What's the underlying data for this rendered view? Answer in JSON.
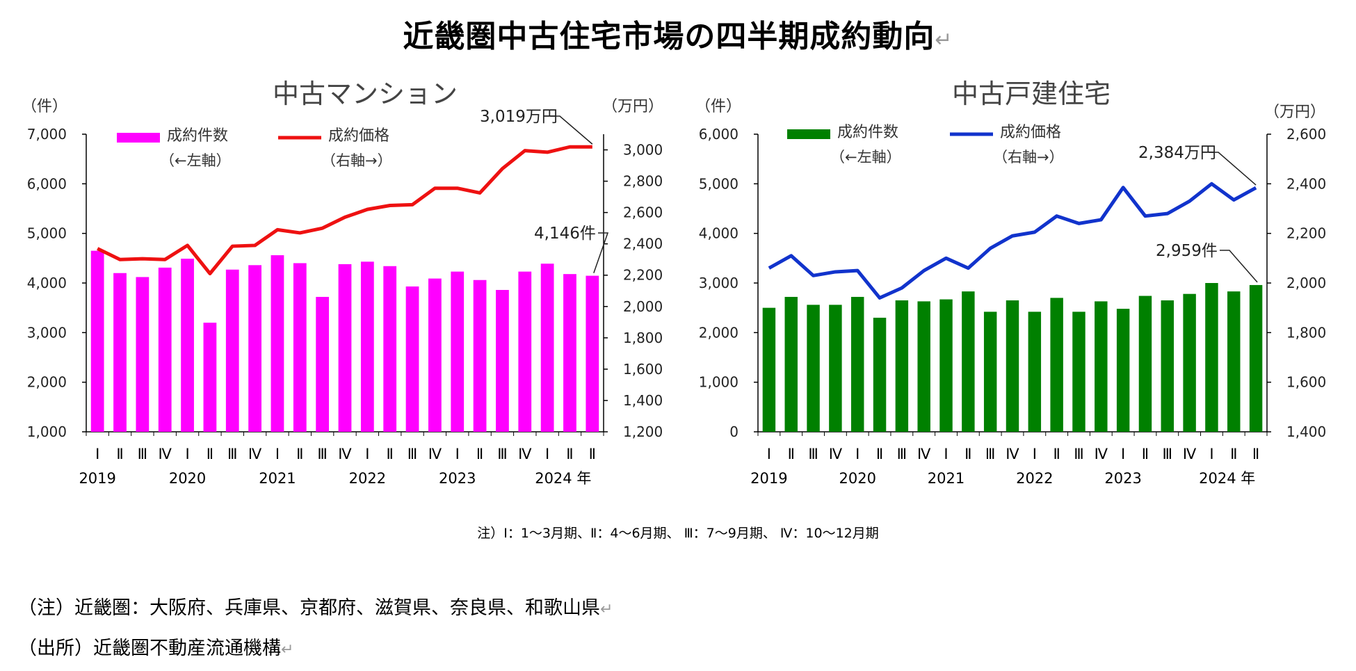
{
  "title": "近畿圏中古住宅市場の四半期成約動向",
  "return_mark": "↵",
  "quarter_note": "注）Ⅰ：1～3月期、Ⅱ：4～6月期、 Ⅲ：7～9月期、 Ⅳ：10～12月期",
  "footnotes": {
    "region": "（注）近畿圏：大阪府、兵庫県、京都府、滋賀県、奈良県、和歌山県",
    "source": "（出所）近畿圏不動産流通機構"
  },
  "colors": {
    "mansion_bar": "#ff00ff",
    "mansion_line": "#ee1111",
    "house_bar": "#008000",
    "house_line": "#1133cc"
  },
  "chart_data": [
    {
      "type": "bar+line",
      "title": "中古マンション",
      "left_unit": "（件）",
      "right_unit": "（万円）",
      "legend": {
        "bar_label": "成約件数",
        "bar_sub": "（←左軸）",
        "line_label": "成約価格",
        "line_sub": "（右軸→）"
      },
      "categories": [
        "Ⅰ",
        "Ⅱ",
        "Ⅲ",
        "Ⅳ",
        "Ⅰ",
        "Ⅱ",
        "Ⅲ",
        "Ⅳ",
        "Ⅰ",
        "Ⅱ",
        "Ⅲ",
        "Ⅳ",
        "Ⅰ",
        "Ⅱ",
        "Ⅲ",
        "Ⅳ",
        "Ⅰ",
        "Ⅱ",
        "Ⅲ",
        "Ⅳ",
        "Ⅰ",
        "Ⅱ",
        "Ⅱ"
      ],
      "years": [
        {
          "label": "2019",
          "index": 0
        },
        {
          "label": "2020",
          "index": 4
        },
        {
          "label": "2021",
          "index": 8
        },
        {
          "label": "2022",
          "index": 12
        },
        {
          "label": "2023",
          "index": 16
        },
        {
          "label": "2024 年",
          "index": 20
        }
      ],
      "bar_values": [
        4650,
        4200,
        4120,
        4310,
        4490,
        3200,
        4270,
        4360,
        4560,
        4400,
        3720,
        4380,
        4430,
        4340,
        3930,
        4090,
        4230,
        4060,
        3860,
        4230,
        4390,
        4180,
        4146
      ],
      "line_values": [
        2370,
        2300,
        2305,
        2300,
        2390,
        2210,
        2385,
        2390,
        2490,
        2470,
        2500,
        2570,
        2620,
        2645,
        2650,
        2755,
        2755,
        2725,
        2880,
        2995,
        2985,
        3019,
        3019
      ],
      "left_ylim": [
        1000,
        7000
      ],
      "left_ticks": [
        "1,000",
        "2,000",
        "3,000",
        "4,000",
        "5,000",
        "6,000",
        "7,000"
      ],
      "right_ylim": [
        1200,
        3100
      ],
      "right_ticks": [
        "1,200",
        "1,400",
        "1,600",
        "1,800",
        "2,000",
        "2,200",
        "2,400",
        "2,600",
        "2,800",
        "3,000"
      ],
      "bar_callout": "4,146件",
      "line_callout": "3,019万円"
    },
    {
      "type": "bar+line",
      "title": "中古戸建住宅",
      "left_unit": "（件）",
      "right_unit": "（万円）",
      "legend": {
        "bar_label": "成約件数",
        "bar_sub": "（←左軸）",
        "line_label": "成約価格",
        "line_sub": "（右軸→）"
      },
      "categories": [
        "Ⅰ",
        "Ⅱ",
        "Ⅲ",
        "Ⅳ",
        "Ⅰ",
        "Ⅱ",
        "Ⅲ",
        "Ⅳ",
        "Ⅰ",
        "Ⅱ",
        "Ⅲ",
        "Ⅳ",
        "Ⅰ",
        "Ⅱ",
        "Ⅲ",
        "Ⅳ",
        "Ⅰ",
        "Ⅱ",
        "Ⅲ",
        "Ⅳ",
        "Ⅰ",
        "Ⅱ",
        "Ⅱ"
      ],
      "years": [
        {
          "label": "2019",
          "index": 0
        },
        {
          "label": "2020",
          "index": 4
        },
        {
          "label": "2021",
          "index": 8
        },
        {
          "label": "2022",
          "index": 12
        },
        {
          "label": "2023",
          "index": 16
        },
        {
          "label": "2024 年",
          "index": 20
        }
      ],
      "bar_values": [
        2500,
        2720,
        2560,
        2560,
        2720,
        2300,
        2650,
        2630,
        2670,
        2830,
        2420,
        2650,
        2420,
        2700,
        2420,
        2630,
        2480,
        2740,
        2650,
        2780,
        3000,
        2830,
        2959
      ],
      "line_values": [
        2060,
        2110,
        2030,
        2045,
        2050,
        1940,
        1980,
        2050,
        2100,
        2060,
        2140,
        2190,
        2205,
        2270,
        2240,
        2255,
        2385,
        2270,
        2280,
        2330,
        2400,
        2335,
        2384
      ],
      "left_ylim": [
        0,
        6000
      ],
      "left_ticks": [
        "0",
        "1,000",
        "2,000",
        "3,000",
        "4,000",
        "5,000",
        "6,000"
      ],
      "right_ylim": [
        1400,
        2600
      ],
      "right_ticks": [
        "1,400",
        "1,600",
        "1,800",
        "2,000",
        "2,200",
        "2,400",
        "2,600"
      ],
      "bar_callout": "2,959件",
      "line_callout": "2,384万円"
    }
  ]
}
